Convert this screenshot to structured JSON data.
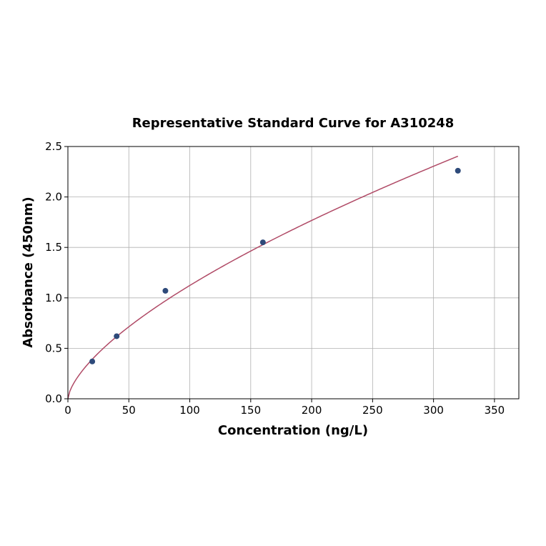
{
  "chart_data": {
    "type": "scatter",
    "title": "Representative Standard Curve for A310248",
    "xlabel": "Concentration (ng/L)",
    "ylabel": "Absorbance (450nm)",
    "xlim": [
      0,
      370
    ],
    "ylim": [
      0,
      2.5
    ],
    "xticks": [
      0,
      50,
      100,
      150,
      200,
      250,
      300,
      350
    ],
    "yticks": [
      0.0,
      0.5,
      1.0,
      1.5,
      2.0,
      2.5
    ],
    "xtick_labels": [
      "0",
      "50",
      "100",
      "150",
      "200",
      "250",
      "300",
      "350"
    ],
    "ytick_labels": [
      "0.0",
      "0.5",
      "1.0",
      "1.5",
      "2.0",
      "2.5"
    ],
    "grid": true,
    "points": {
      "x": [
        20,
        40,
        80,
        160,
        320
      ],
      "y": [
        0.37,
        0.62,
        1.07,
        1.55,
        2.26
      ]
    },
    "fit_curve": {
      "x_range": [
        0,
        320
      ]
    },
    "colors": {
      "points": "#2e4a7a",
      "curve": "#b04a66",
      "grid": "#b0b0b0"
    }
  }
}
